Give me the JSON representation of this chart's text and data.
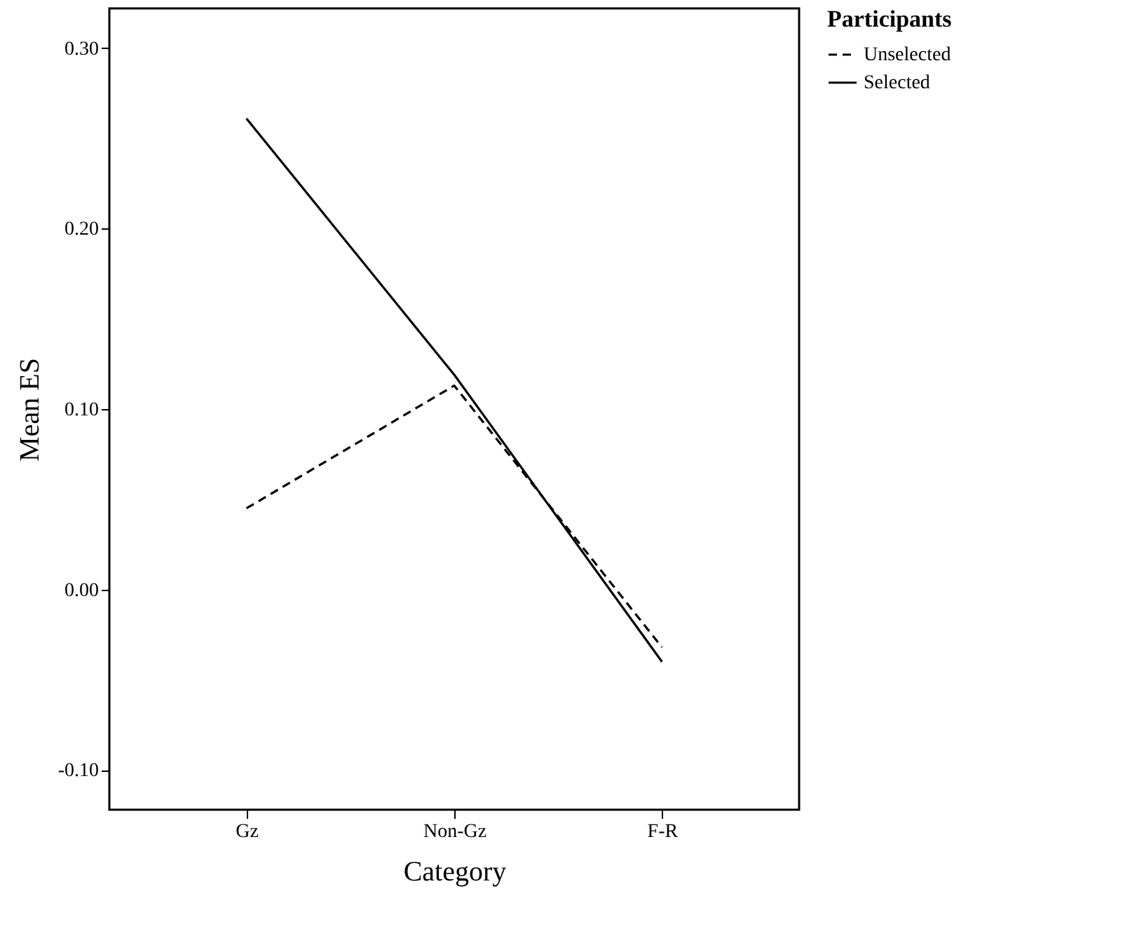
{
  "chart_data": {
    "type": "line",
    "xlabel": "Category",
    "ylabel": "Mean ES",
    "legend_title": "Participants",
    "legend": "top right",
    "grid": false,
    "marker": "none",
    "categories": [
      "Gz",
      "Non-Gz",
      "F-R"
    ],
    "ylim": [
      -0.122,
      0.322
    ],
    "yticks": [
      {
        "value": -0.1,
        "label": "-0.10"
      },
      {
        "value": 0,
        "label": "0.00"
      },
      {
        "value": 0.1,
        "label": "0.10"
      },
      {
        "value": 0.2,
        "label": "0.20"
      },
      {
        "value": 0.3,
        "label": "0.30"
      }
    ],
    "series": [
      {
        "name": "Unselected",
        "color": "#000000",
        "line_style": "dashed",
        "values": [
          0.045,
          0.113,
          -0.032
        ]
      },
      {
        "name": "Selected",
        "color": "#000000",
        "line_style": "solid",
        "values": [
          0.261,
          0.119,
          -0.04
        ]
      }
    ]
  }
}
